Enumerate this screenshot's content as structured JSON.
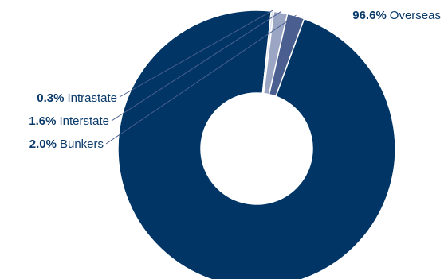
{
  "chart_data": {
    "type": "pie",
    "style": "donut",
    "title": "",
    "slices": [
      {
        "label": "Overseas",
        "value": 96.6,
        "display": "96.6%",
        "color": "#003566"
      },
      {
        "label": "Intrastate",
        "value": 0.3,
        "display": "0.3%",
        "color": "#dde2ec"
      },
      {
        "label": "Interstate",
        "value": 1.6,
        "display": "1.6%",
        "color": "#9aa6c3"
      },
      {
        "label": "Bunkers",
        "value": 2.0,
        "display": "2.0%",
        "color": "#4a5f8f"
      }
    ]
  }
}
